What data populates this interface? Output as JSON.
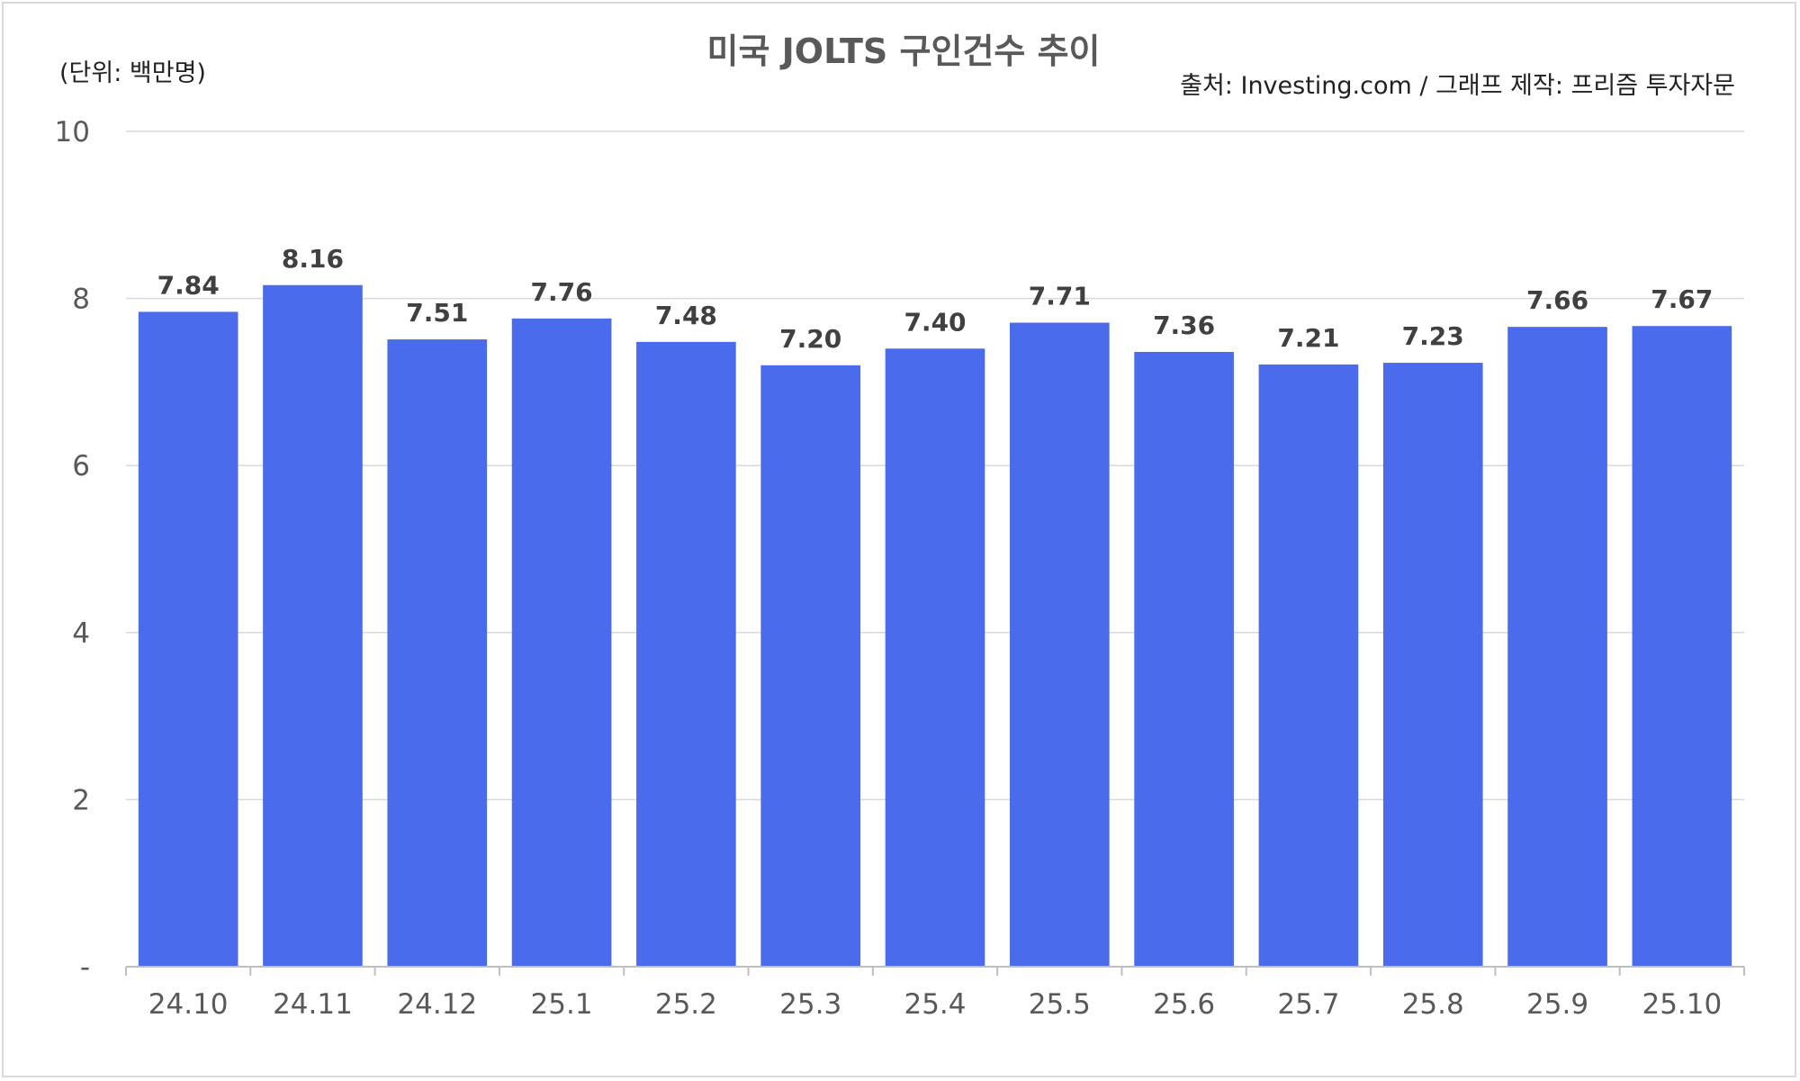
{
  "chart_data": {
    "type": "bar",
    "title": "미국 JOLTS 구인건수 추이",
    "unit_label": "(단위: 백만명)",
    "source": "출처: Investing.com / 그래프 제작: 프리즘 투자자문",
    "categories": [
      "24.10",
      "24.11",
      "24.12",
      "25.1",
      "25.2",
      "25.3",
      "25.4",
      "25.5",
      "25.6",
      "25.7",
      "25.8",
      "25.9",
      "25.10"
    ],
    "values": [
      7.84,
      8.16,
      7.51,
      7.76,
      7.48,
      7.2,
      7.4,
      7.71,
      7.36,
      7.21,
      7.23,
      7.66,
      7.67
    ],
    "value_labels": [
      "7.84",
      "8.16",
      "7.51",
      "7.76",
      "7.48",
      "7.20",
      "7.40",
      "7.71",
      "7.36",
      "7.21",
      "7.23",
      "7.66",
      "7.67"
    ],
    "ylim": [
      0,
      10
    ],
    "yticks": [
      0,
      2,
      4,
      6,
      8,
      10
    ],
    "ytick_labels": [
      "-",
      "2",
      "4",
      "6",
      "8",
      "10"
    ],
    "grid": true,
    "bar_color": "#4a6cec",
    "legend": "none"
  }
}
